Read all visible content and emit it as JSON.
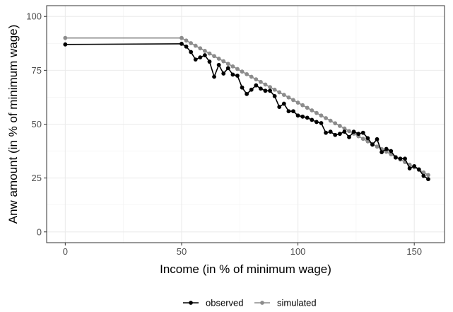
{
  "chart_data": {
    "type": "line",
    "title": "",
    "xlabel": "Income (in % of minimum wage)",
    "ylabel": "Anw amount (in % of minimum wage)",
    "xlim": [
      -8,
      163
    ],
    "ylim": [
      -5,
      105
    ],
    "x_ticks": [
      0,
      50,
      100,
      150
    ],
    "y_ticks": [
      0,
      25,
      50,
      75,
      100
    ],
    "grid": true,
    "legend_position": "bottom",
    "series": [
      {
        "name": "observed",
        "color": "#000000",
        "points": [
          [
            0,
            87
          ],
          [
            50,
            87.3
          ],
          [
            52,
            86
          ],
          [
            54,
            83.5
          ],
          [
            56,
            80
          ],
          [
            58,
            81
          ],
          [
            60,
            82
          ],
          [
            62,
            79
          ],
          [
            64,
            72
          ],
          [
            66,
            77.5
          ],
          [
            68,
            73.5
          ],
          [
            70,
            76
          ],
          [
            72,
            73
          ],
          [
            74,
            72.5
          ],
          [
            76,
            67
          ],
          [
            78,
            64
          ],
          [
            80,
            66
          ],
          [
            82,
            68
          ],
          [
            84,
            66.5
          ],
          [
            86,
            65.5
          ],
          [
            88,
            65.5
          ],
          [
            90,
            63
          ],
          [
            92,
            58
          ],
          [
            94,
            59.5
          ],
          [
            96,
            56
          ],
          [
            98,
            56
          ],
          [
            100,
            54
          ],
          [
            102,
            53.5
          ],
          [
            104,
            53
          ],
          [
            106,
            52
          ],
          [
            108,
            51
          ],
          [
            110,
            50.5
          ],
          [
            112,
            46
          ],
          [
            114,
            46.5
          ],
          [
            116,
            45
          ],
          [
            118,
            45.5
          ],
          [
            120,
            46.5
          ],
          [
            122,
            44
          ],
          [
            124,
            46.5
          ],
          [
            126,
            45.5
          ],
          [
            128,
            46
          ],
          [
            130,
            43.5
          ],
          [
            132,
            40.5
          ],
          [
            134,
            43
          ],
          [
            136,
            37
          ],
          [
            138,
            38.5
          ],
          [
            140,
            37.5
          ],
          [
            142,
            34.5
          ],
          [
            144,
            34
          ],
          [
            146,
            34
          ],
          [
            148,
            29.5
          ],
          [
            150,
            30.5
          ],
          [
            152,
            29
          ],
          [
            154,
            26
          ],
          [
            156,
            24.5
          ]
        ]
      },
      {
        "name": "simulated",
        "color": "#8c8c8c",
        "points": [
          [
            0,
            90
          ],
          [
            50,
            90
          ],
          [
            52,
            88.8
          ],
          [
            54,
            87.6
          ],
          [
            56,
            86.4
          ],
          [
            58,
            85.2
          ],
          [
            60,
            84
          ],
          [
            62,
            82.8
          ],
          [
            64,
            81.6
          ],
          [
            66,
            80.4
          ],
          [
            68,
            79.2
          ],
          [
            70,
            78
          ],
          [
            72,
            76.8
          ],
          [
            74,
            75.6
          ],
          [
            76,
            74.4
          ],
          [
            78,
            73.2
          ],
          [
            80,
            72
          ],
          [
            82,
            70.8
          ],
          [
            84,
            69.6
          ],
          [
            86,
            68.4
          ],
          [
            88,
            67.2
          ],
          [
            90,
            66
          ],
          [
            92,
            64.8
          ],
          [
            94,
            63.6
          ],
          [
            96,
            62.4
          ],
          [
            98,
            61.2
          ],
          [
            100,
            60
          ],
          [
            102,
            58.8
          ],
          [
            104,
            57.6
          ],
          [
            106,
            56.4
          ],
          [
            108,
            55.2
          ],
          [
            110,
            54
          ],
          [
            112,
            52.8
          ],
          [
            114,
            51.6
          ],
          [
            116,
            50.4
          ],
          [
            118,
            49.2
          ],
          [
            120,
            48
          ],
          [
            122,
            46.8
          ],
          [
            124,
            45.6
          ],
          [
            126,
            44.4
          ],
          [
            128,
            43.2
          ],
          [
            130,
            42
          ],
          [
            132,
            40.8
          ],
          [
            134,
            39.6
          ],
          [
            136,
            38.4
          ],
          [
            138,
            37.2
          ],
          [
            140,
            36
          ],
          [
            142,
            34.8
          ],
          [
            144,
            33.6
          ],
          [
            146,
            32.4
          ],
          [
            148,
            31.2
          ],
          [
            150,
            30
          ],
          [
            152,
            28.8
          ],
          [
            154,
            27.6
          ],
          [
            156,
            26.4
          ]
        ]
      }
    ]
  }
}
